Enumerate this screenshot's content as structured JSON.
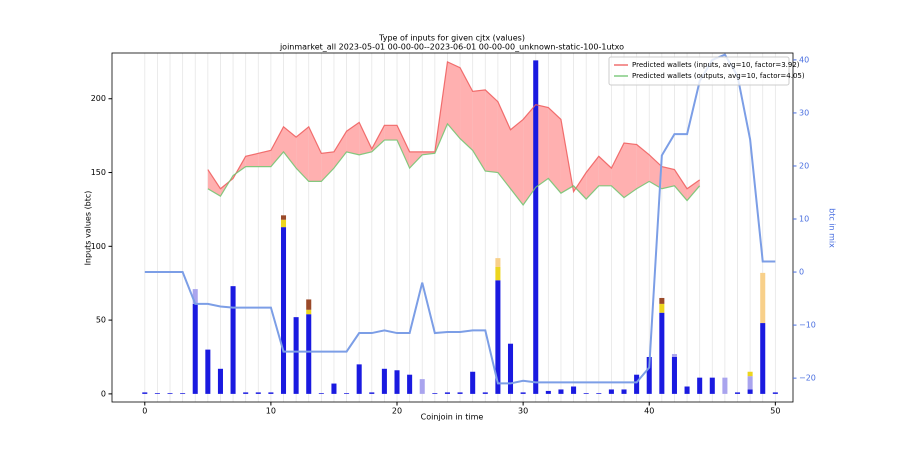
{
  "chart_data": {
    "type": "bar",
    "title": "Type of inputs for given cjtx (values)",
    "subtitle": "joinmarket_all 2023-05-01 00-00-00--2023-06-01 00-00-00_unknown-static-100-1utxo",
    "xlabel": "Coinjoin in time",
    "ylabel": "Inputs values (btc)",
    "y2label": "btc in mix",
    "x": [
      0,
      1,
      2,
      3,
      4,
      5,
      6,
      7,
      8,
      9,
      10,
      11,
      12,
      13,
      14,
      15,
      16,
      17,
      18,
      19,
      20,
      21,
      22,
      23,
      24,
      25,
      26,
      27,
      28,
      29,
      30,
      31,
      32,
      33,
      34,
      35,
      36,
      37,
      38,
      39,
      40,
      41,
      42,
      43,
      44,
      45,
      46,
      47,
      48,
      49,
      50
    ],
    "xlim": [
      -2.6,
      51.4
    ],
    "ylim": [
      -5.5,
      231
    ],
    "y2lim": [
      -24.5,
      41.3
    ],
    "xticks": [
      0,
      10,
      20,
      30,
      40,
      50
    ],
    "yticks": [
      0,
      50,
      100,
      150,
      200
    ],
    "y2ticks": [
      {
        "value": -20,
        "label": "−20"
      },
      {
        "value": -10,
        "label": "−10"
      },
      0,
      10,
      20,
      30,
      40
    ],
    "x_grid": true,
    "legend": "upper right",
    "series": [
      {
        "kind": "bar",
        "color": "#1a1ae0",
        "values": [
          1,
          0.5,
          0.5,
          0.5,
          61,
          30,
          17,
          73,
          1,
          1,
          1,
          113,
          52,
          54,
          0.5,
          7,
          0.5,
          20,
          1,
          17,
          16,
          13,
          0,
          0.5,
          1,
          1,
          15,
          1,
          77,
          34,
          1,
          226,
          2,
          3,
          5,
          0.5,
          0.5,
          3,
          3,
          13,
          25,
          55,
          25,
          5,
          11,
          11,
          0,
          1,
          3,
          48,
          1
        ]
      },
      {
        "kind": "bar",
        "color": "#a9a4ee",
        "values": [
          0,
          0,
          0,
          0,
          10,
          0,
          0,
          0,
          0,
          0,
          0,
          0,
          0,
          0,
          0,
          0,
          0,
          0,
          0,
          0,
          0,
          0,
          10,
          0,
          0,
          0,
          0,
          0,
          0,
          0,
          0,
          0,
          0,
          0,
          0,
          0,
          0,
          0,
          0,
          0,
          0,
          0,
          2,
          0,
          0,
          0,
          11,
          0,
          9,
          0,
          0
        ]
      },
      {
        "kind": "bar",
        "color": "#ecd51e",
        "values": [
          0,
          0,
          0,
          0,
          0,
          0,
          0,
          0,
          0,
          0,
          0,
          5,
          0,
          3,
          0,
          0,
          0,
          0,
          0,
          0,
          0,
          0,
          0,
          0,
          0,
          0,
          0,
          0,
          9,
          0,
          0,
          0,
          0,
          0,
          0,
          0,
          0,
          0,
          0,
          0,
          0,
          6,
          0,
          0,
          0,
          0,
          0,
          0,
          3,
          0,
          0
        ]
      },
      {
        "kind": "bar",
        "color": "#9a4a2a",
        "values": [
          0,
          0,
          0,
          0,
          0,
          0,
          0,
          0,
          0,
          0,
          0,
          3,
          0,
          7,
          0,
          0,
          0,
          0,
          0,
          0,
          0,
          0,
          0,
          0,
          0,
          0,
          0,
          0,
          0,
          0,
          0,
          0,
          0,
          0,
          0,
          0,
          0,
          0,
          0,
          0,
          0,
          4,
          0,
          0,
          0,
          0,
          0,
          0,
          0,
          0,
          0
        ]
      },
      {
        "kind": "bar",
        "color": "#f8d08a",
        "values": [
          0,
          0,
          0,
          0,
          0,
          0,
          0,
          0,
          0,
          0,
          0,
          0,
          0,
          0,
          0,
          0,
          0,
          0,
          0,
          0,
          0,
          0,
          0,
          0,
          0,
          0,
          0,
          0,
          6,
          0,
          0,
          0,
          0,
          0,
          0,
          0,
          0,
          0,
          0,
          0,
          0,
          0,
          0,
          0,
          0,
          0,
          0,
          0,
          0,
          34,
          0
        ]
      },
      {
        "kind": "line",
        "name": "Predicted wallets (inputs, avg=10, factor=3.92)",
        "color": "#ee5a5a",
        "fill_color": "#ffb0b0",
        "values": [
          null,
          null,
          null,
          null,
          null,
          152,
          139,
          146,
          161,
          163,
          165,
          181,
          174,
          181,
          163,
          164,
          178,
          184,
          166,
          182,
          182,
          164,
          164,
          164,
          225,
          221,
          205,
          206,
          198,
          179,
          186,
          196,
          194,
          186,
          137,
          150,
          161,
          153,
          170,
          169,
          162,
          154,
          152,
          139,
          145,
          null,
          null,
          null,
          null,
          null,
          null
        ]
      },
      {
        "kind": "line",
        "name": "Predicted wallets (outputs, avg=10, factor=4.05)",
        "color": "#6ec46e",
        "fill_color": "#9fd49f",
        "values": [
          null,
          null,
          null,
          null,
          null,
          139,
          134,
          148,
          154,
          154,
          154,
          164,
          153,
          144,
          144,
          153,
          164,
          162,
          164,
          172,
          172,
          153,
          162,
          163,
          183,
          173,
          165,
          151,
          150,
          139,
          128,
          140,
          146,
          136,
          141,
          132,
          141,
          141,
          133,
          139,
          144,
          139,
          141,
          131,
          141,
          null,
          null,
          null,
          null,
          null,
          null
        ]
      },
      {
        "kind": "line",
        "axis": "y2",
        "color": "#7c9ee6",
        "values": [
          0,
          0,
          0,
          0,
          -6,
          -6,
          -6.5,
          -6.7,
          -6.7,
          -6.7,
          -6.7,
          -15,
          -15,
          -15,
          -15,
          -15,
          -15,
          -11.5,
          -11.5,
          -11,
          -11.5,
          -11.5,
          -2,
          -11.5,
          -11.3,
          -11.3,
          -11,
          -11,
          -21,
          -21,
          -20.5,
          -20.8,
          -20.8,
          -20.8,
          -20.8,
          -20.8,
          -20.8,
          -20.8,
          -20.8,
          -20.8,
          -18,
          22,
          26,
          26,
          36,
          40,
          41,
          37,
          25,
          2,
          2
        ]
      }
    ]
  }
}
